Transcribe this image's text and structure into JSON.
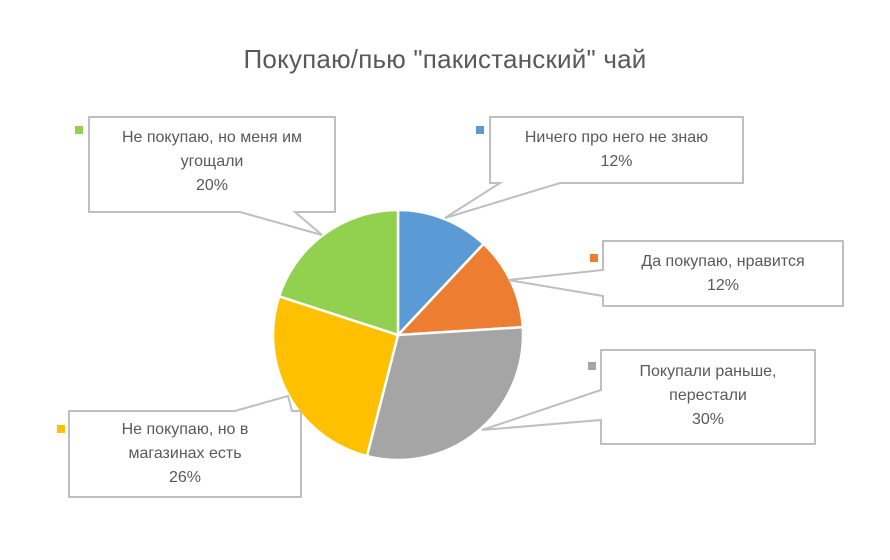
{
  "chart_data": {
    "type": "pie",
    "title": "Покупаю/пью \"пакистанский\" чай",
    "categories": [
      "Ничего про него не знаю",
      "Да покупаю, нравится",
      "Покупали раньше, перестали",
      "Не покупаю, но в магазинах есть",
      "Не покупаю, но меня им угощали"
    ],
    "values": [
      12,
      12,
      30,
      26,
      20
    ],
    "unit": "%",
    "colors": [
      "#5B9BD5",
      "#ED7D31",
      "#A5A5A5",
      "#FFC000",
      "#92D050"
    ],
    "legend": "none (data callouts with category name and percentage)",
    "start_angle_deg": 0,
    "direction": "clockwise"
  },
  "callouts": [
    {
      "lines": [
        "Ничего про него не знаю",
        "12%"
      ],
      "color": "#5B9BD5"
    },
    {
      "lines": [
        "Да покупаю, нравится",
        "12%"
      ],
      "color": "#ED7D31"
    },
    {
      "lines": [
        "Покупали раньше,",
        "перестали",
        "30%"
      ],
      "color": "#A5A5A5"
    },
    {
      "lines": [
        "Не покупаю, но в",
        "магазинах есть",
        "26%"
      ],
      "color": "#FFC000"
    },
    {
      "lines": [
        "Не покупаю, но меня им",
        "угощали",
        "20%"
      ],
      "color": "#92D050"
    }
  ]
}
